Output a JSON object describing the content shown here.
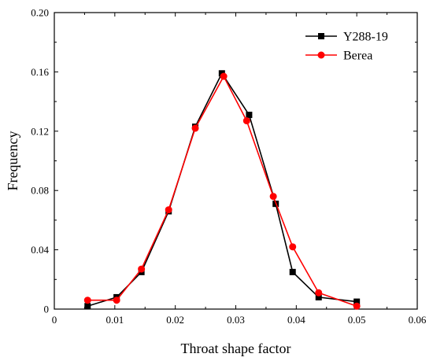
{
  "chart_data": {
    "type": "line",
    "title": "",
    "xlabel": "Throat shape factor",
    "ylabel": "Frequency",
    "xlim": [
      0,
      0.06
    ],
    "ylim": [
      0,
      0.2
    ],
    "xticks": [
      0,
      0.01,
      0.02,
      0.03,
      0.04,
      0.05,
      0.06
    ],
    "xtick_labels": [
      "0",
      "0.01",
      "0.02",
      "0.03",
      "0.04",
      "0.05",
      "0.06"
    ],
    "yticks": [
      0,
      0.04,
      0.08,
      0.12,
      0.16,
      0.2
    ],
    "ytick_labels": [
      "0",
      "0.04",
      "0.08",
      "0.12",
      "0.16",
      "0.20"
    ],
    "grid": false,
    "legend_position": "top-right",
    "series": [
      {
        "name": "Y288-19",
        "color": "#000000",
        "marker": "square",
        "x": [
          0.0055,
          0.0103,
          0.0144,
          0.0189,
          0.0233,
          0.0277,
          0.0322,
          0.0366,
          0.0394,
          0.0437,
          0.05
        ],
        "y": [
          0.002,
          0.008,
          0.025,
          0.066,
          0.123,
          0.159,
          0.131,
          0.071,
          0.025,
          0.008,
          0.005
        ]
      },
      {
        "name": "Berea",
        "color": "#ff0000",
        "marker": "circle",
        "x": [
          0.0055,
          0.0103,
          0.0144,
          0.0189,
          0.0233,
          0.028,
          0.0318,
          0.0362,
          0.0394,
          0.0437,
          0.05
        ],
        "y": [
          0.006,
          0.006,
          0.027,
          0.067,
          0.122,
          0.157,
          0.127,
          0.076,
          0.042,
          0.011,
          0.002
        ]
      }
    ]
  }
}
